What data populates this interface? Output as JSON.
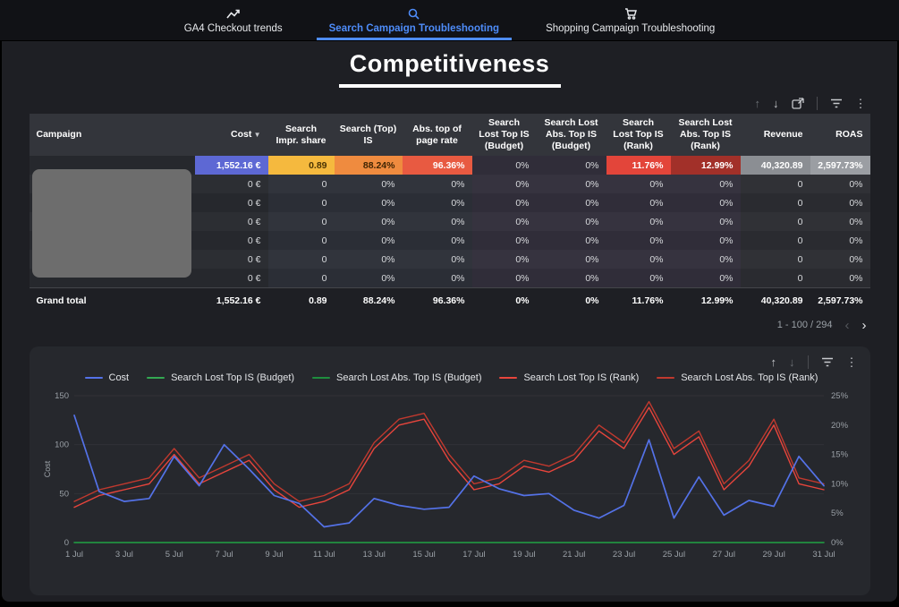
{
  "nav": {
    "tabs": [
      {
        "label": "GA4 Checkout trends",
        "active": false
      },
      {
        "label": "Search Campaign Troubleshooting",
        "active": true
      },
      {
        "label": "Shopping Campaign Troubleshooting",
        "active": false
      }
    ]
  },
  "title": "Competitiveness",
  "table": {
    "headers": [
      "Campaign",
      "Cost",
      "Search Impr. share",
      "Search (Top) IS",
      "Abs. top of page rate",
      "Search Lost Top IS (Budget)",
      "Search Lost Abs. Top IS (Budget)",
      "Search Lost Top IS (Rank)",
      "Search Lost Abs. Top IS (Rank)",
      "Revenue",
      "ROAS"
    ],
    "sort": {
      "column": "Cost",
      "direction": "desc"
    },
    "rows": [
      [
        "",
        "1,552.16 €",
        "0.89",
        "88.24%",
        "96.36%",
        "0%",
        "0%",
        "11.76%",
        "12.99%",
        "40,320.89",
        "2,597.73%"
      ],
      [
        "",
        "0 €",
        "0",
        "0%",
        "0%",
        "0%",
        "0%",
        "0%",
        "0%",
        "0",
        "0%"
      ],
      [
        "",
        "0 €",
        "0",
        "0%",
        "0%",
        "0%",
        "0%",
        "0%",
        "0%",
        "0",
        "0%"
      ],
      [
        "",
        "0 €",
        "0",
        "0%",
        "0%",
        "0%",
        "0%",
        "0%",
        "0%",
        "0",
        "0%"
      ],
      [
        "",
        "0 €",
        "0",
        "0%",
        "0%",
        "0%",
        "0%",
        "0%",
        "0%",
        "0",
        "0%"
      ],
      [
        "",
        "0 €",
        "0",
        "0%",
        "0%",
        "0%",
        "0%",
        "0%",
        "0%",
        "0",
        "0%"
      ],
      [
        "",
        "0 €",
        "0",
        "0%",
        "0%",
        "0%",
        "0%",
        "0%",
        "0%",
        "0",
        "0%"
      ]
    ],
    "heat": {
      "0": {
        "1": [
          "#5d68d4",
          "#ffffff"
        ],
        "2": [
          "#f5b93e",
          "#4a3404"
        ],
        "3": [
          "#ef8b3f",
          "#3f2403"
        ],
        "4": [
          "#e85a41",
          "#ffffff"
        ],
        "7": [
          "#e3453a",
          "#ffffff"
        ],
        "8": [
          "#a23029",
          "#ffffff"
        ],
        "9": [
          "#8b8e93",
          "#ffffff"
        ],
        "10": [
          "#9b9ea3",
          "#ffffff"
        ]
      }
    },
    "grand_total": [
      "Grand total",
      "1,552.16 €",
      "0.89",
      "88.24%",
      "96.36%",
      "0%",
      "0%",
      "11.76%",
      "12.99%",
      "40,320.89",
      "2,597.73%"
    ],
    "pagination": {
      "range": "1 - 100 / 294"
    }
  },
  "chart_data": {
    "type": "line",
    "x_days": [
      1,
      2,
      3,
      4,
      5,
      6,
      7,
      8,
      9,
      10,
      11,
      12,
      13,
      14,
      15,
      16,
      17,
      18,
      19,
      20,
      21,
      22,
      23,
      24,
      25,
      26,
      27,
      28,
      29,
      30,
      31
    ],
    "tick_labels": [
      "1 Jul",
      "3 Jul",
      "5 Jul",
      "7 Jul",
      "9 Jul",
      "11 Jul",
      "13 Jul",
      "15 Jul",
      "17 Jul",
      "19 Jul",
      "21 Jul",
      "23 Jul",
      "25 Jul",
      "27 Jul",
      "29 Jul",
      "31 Jul"
    ],
    "left_axis": {
      "label": "Cost",
      "ticks": [
        0,
        50,
        100,
        150
      ],
      "lim": [
        0,
        150
      ]
    },
    "right_axis": {
      "ticks": [
        "0%",
        "5%",
        "10%",
        "15%",
        "20%",
        "25%"
      ],
      "lim": [
        0,
        25
      ]
    },
    "series": [
      {
        "name": "Cost",
        "color": "#5472e8",
        "axis": "left",
        "values": [
          130,
          52,
          42,
          45,
          88,
          58,
          100,
          75,
          48,
          40,
          16,
          20,
          45,
          38,
          34,
          36,
          68,
          55,
          48,
          50,
          33,
          25,
          38,
          105,
          25,
          67,
          28,
          43,
          37,
          88,
          58
        ]
      },
      {
        "name": "Search Lost Top IS (Budget)",
        "color": "#33a852",
        "axis": "right",
        "values": [
          0,
          0,
          0,
          0,
          0,
          0,
          0,
          0,
          0,
          0,
          0,
          0,
          0,
          0,
          0,
          0,
          0,
          0,
          0,
          0,
          0,
          0,
          0,
          0,
          0,
          0,
          0,
          0,
          0,
          0,
          0
        ]
      },
      {
        "name": "Search Lost Abs. Top IS (Budget)",
        "color": "#1e8e3e",
        "axis": "right",
        "values": [
          0,
          0,
          0,
          0,
          0,
          0,
          0,
          0,
          0,
          0,
          0,
          0,
          0,
          0,
          0,
          0,
          0,
          0,
          0,
          0,
          0,
          0,
          0,
          0,
          0,
          0,
          0,
          0,
          0,
          0,
          0
        ]
      },
      {
        "name": "Search Lost Top IS (Rank)",
        "color": "#e8453c",
        "axis": "right",
        "values": [
          6,
          8,
          9,
          10,
          15,
          10,
          12,
          14,
          9,
          6,
          7,
          9,
          16,
          20,
          21,
          14,
          9,
          10,
          13,
          12,
          14,
          19,
          16,
          23,
          15,
          18,
          9,
          13,
          20,
          10,
          9
        ]
      },
      {
        "name": "Search Lost Abs. Top IS (Rank)",
        "color": "#c0392e",
        "axis": "right",
        "values": [
          7,
          9,
          10,
          11,
          16,
          11,
          13,
          15,
          10,
          7,
          8,
          10,
          17,
          21,
          22,
          15,
          10,
          11,
          14,
          13,
          15,
          20,
          17,
          24,
          16,
          19,
          10,
          14,
          21,
          11,
          10
        ]
      }
    ]
  },
  "toolbar": {
    "up_arrow": "↑",
    "down_arrow": "↓",
    "kebab": "⋮",
    "chevron_left": "‹",
    "chevron_right": "›"
  },
  "colors": {
    "accent_blue": "#4e8cf9",
    "cost_line": "#5472e8",
    "lost_budget_green": "#33a852",
    "lost_rank_red": "#e8453c",
    "lost_abs_rank_red": "#c0392e"
  }
}
